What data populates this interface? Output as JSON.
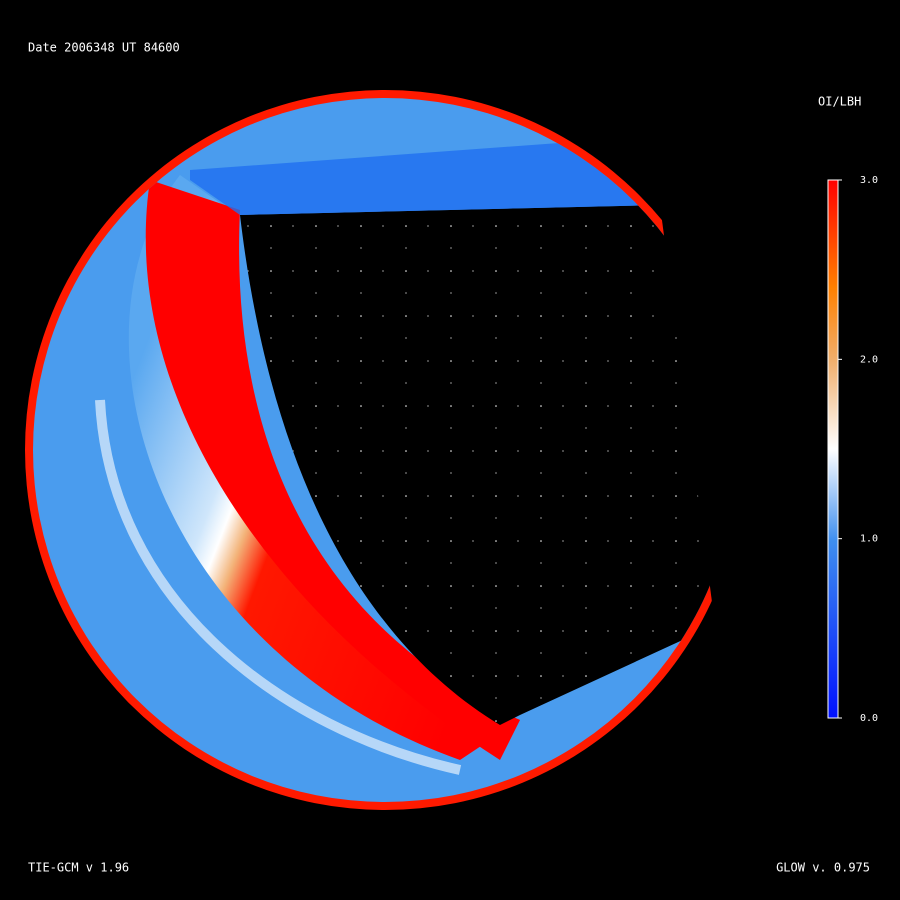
{
  "header": {
    "title": "Date 2006348  UT 84600"
  },
  "colorbar": {
    "title": "OI/LBH",
    "lim": [
      0,
      3
    ],
    "ticks": [
      {
        "value": 3,
        "label": "3.0"
      },
      {
        "value": 2,
        "label": "2.0"
      },
      {
        "value": 1,
        "label": "1.0"
      },
      {
        "value": 0,
        "label": "0.0"
      }
    ]
  },
  "footer": {
    "left": "TIE-GCM v 1.96",
    "right": "GLOW v. 0.975"
  }
}
